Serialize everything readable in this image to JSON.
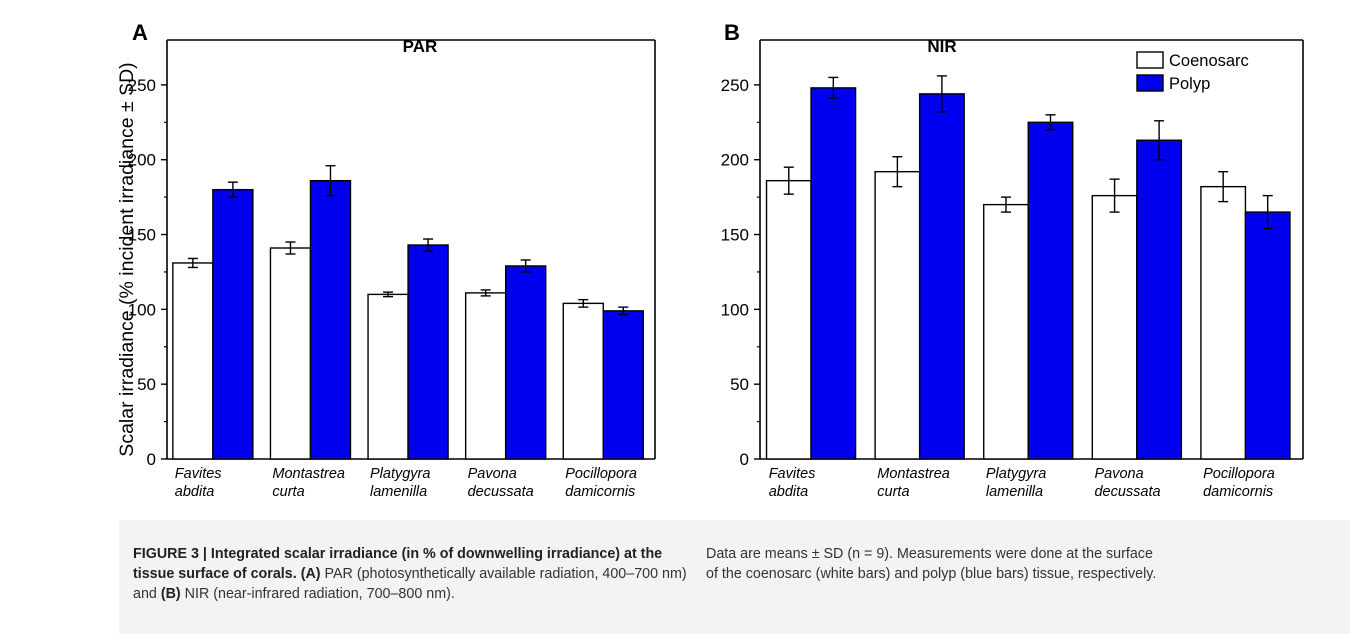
{
  "chart_data": [
    {
      "type": "bar",
      "panel_letter": "A",
      "title": "PAR",
      "ylabel": "Scalar irradiance (% incident irradiance ± SD)",
      "xlabel": "",
      "ylim": [
        0,
        280
      ],
      "yticks": [
        0,
        50,
        100,
        150,
        200,
        250
      ],
      "categories": [
        [
          "Favites",
          "abdita"
        ],
        [
          "Montastrea",
          "curta"
        ],
        [
          "Platygyra",
          "lamenilla"
        ],
        [
          "Pavona",
          "decussata"
        ],
        [
          "Pocillopora",
          "damicornis"
        ]
      ],
      "series": [
        {
          "name": "Coenosarc",
          "color": "#ffffff",
          "values": [
            131,
            141,
            110,
            111,
            104
          ],
          "errors": [
            3,
            4,
            1.5,
            2,
            2.5
          ]
        },
        {
          "name": "Polyp",
          "color": "#0000ee",
          "values": [
            180,
            186,
            143,
            129,
            99
          ],
          "errors": [
            5,
            10,
            4,
            4,
            2.5
          ]
        }
      ],
      "grid": false
    },
    {
      "type": "bar",
      "panel_letter": "B",
      "title": "NIR",
      "ylabel": "",
      "xlabel": "",
      "ylim": [
        0,
        280
      ],
      "yticks": [
        0,
        50,
        100,
        150,
        200,
        250
      ],
      "categories": [
        [
          "Favites",
          "abdita"
        ],
        [
          "Montastrea",
          "curta"
        ],
        [
          "Platygyra",
          "lamenilla"
        ],
        [
          "Pavona",
          "decussata"
        ],
        [
          "Pocillopora",
          "damicornis"
        ]
      ],
      "series": [
        {
          "name": "Coenosarc",
          "color": "#ffffff",
          "values": [
            186,
            192,
            170,
            176,
            182
          ],
          "errors": [
            9,
            10,
            5,
            11,
            10
          ]
        },
        {
          "name": "Polyp",
          "color": "#0000ee",
          "values": [
            248,
            244,
            225,
            213,
            165
          ],
          "errors": [
            7,
            12,
            5,
            13,
            11
          ]
        }
      ],
      "grid": false,
      "legend": {
        "position": "top-right",
        "entries": [
          "Coenosarc",
          "Polyp"
        ]
      }
    }
  ],
  "caption": {
    "left_bold": "FIGURE 3 | Integrated scalar irradiance (in % of downwelling irradiance) at the tissue surface of corals.",
    "left_a_label": "(A)",
    "left_a_text": " PAR (photosynthetically available radiation, 400–700 nm) and ",
    "left_b_label": "(B)",
    "left_b_text": " NIR (near-infrared radiation, 700–800 nm).",
    "right_text": "Data are means ± SD (n = 9). Measurements were done at the surface of the coenosarc (white bars) and polyp (blue bars) tissue, respectively."
  }
}
